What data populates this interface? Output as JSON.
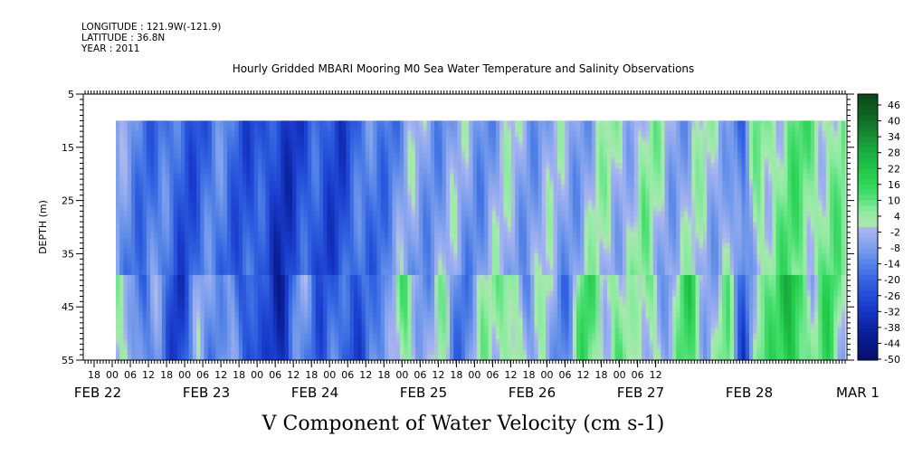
{
  "header": {
    "longitude": "LONGITUDE : 121.9W(-121.9)",
    "latitude": "LATITUDE : 36.8N",
    "year": "YEAR : 2011"
  },
  "chart_data": {
    "type": "heatmap",
    "title": "Hourly Gridded MBARI Mooring M0 Sea Water Temperature and Salinity Observations",
    "xlabel": "V Component of Water Velocity (cm s-1)",
    "ylabel": "DEPTH (m)",
    "ylim": [
      55,
      5
    ],
    "y_ticks": [
      "5",
      "15",
      "25",
      "35",
      "45",
      "55"
    ],
    "x_hour_ticks": [
      "18",
      "00",
      "06",
      "12",
      "18",
      "00",
      "06",
      "12",
      "18",
      "00",
      "06",
      "12",
      "18",
      "00",
      "06",
      "12",
      "18",
      "00",
      "06",
      "12",
      "18",
      "00",
      "06",
      "12",
      "18",
      "00",
      "06",
      "12",
      "18",
      "00",
      "06",
      "12"
    ],
    "x_date_labels": [
      "FEB 22",
      "FEB 23",
      "FEB 24",
      "FEB 25",
      "FEB 26",
      "FEB 27",
      "FEB 28",
      "MAR  1"
    ],
    "data_depth_range": [
      10,
      55
    ],
    "colorbar": {
      "labels": [
        "46",
        "40",
        "34",
        "28",
        "22",
        "16",
        "10",
        "4",
        "-2",
        "-8",
        "-14",
        "-20",
        "-26",
        "-32",
        "-38",
        "-44",
        "-50"
      ],
      "range": [
        -50,
        50
      ]
    },
    "colors": {
      "strong_negative": "#0a1a78",
      "negative": "#2e62d6",
      "weak_negative": "#a8b4ee",
      "weak_positive": "#a8eab0",
      "positive": "#30d860",
      "strong_positive": "#0f5a1e"
    }
  }
}
